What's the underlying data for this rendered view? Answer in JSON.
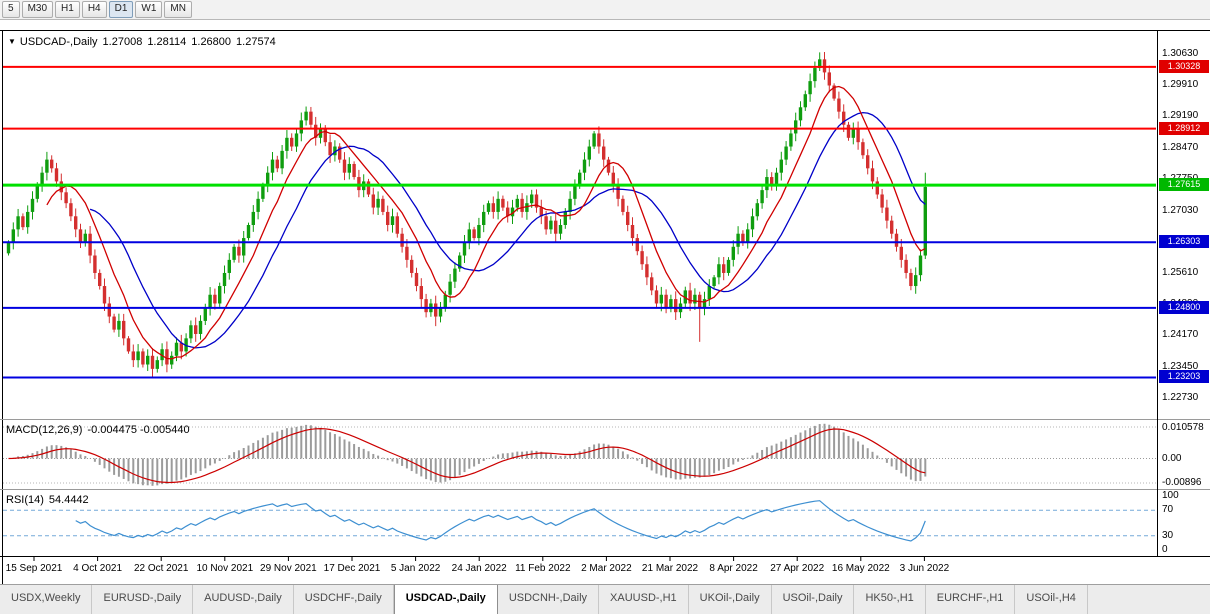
{
  "toolbar": {
    "timeframes": [
      "5",
      "M30",
      "H1",
      "H4",
      "D1",
      "W1",
      "MN"
    ],
    "active": "D1"
  },
  "chart_header": {
    "dropdown_icon": "▼",
    "symbol": "USDCAD-,Daily",
    "open": "1.27008",
    "high": "1.28114",
    "low": "1.26800",
    "close": "1.27574"
  },
  "price_axis": {
    "ticks": [
      "1.30630",
      "1.29910",
      "1.29190",
      "1.28470",
      "1.27750",
      "1.27030",
      "1.26310",
      "1.25610",
      "1.24890",
      "1.24170",
      "1.23450",
      "1.22730"
    ],
    "badges": [
      {
        "value": "1.30328",
        "color": "#e00000"
      },
      {
        "value": "1.28912",
        "color": "#e00000"
      },
      {
        "value": "1.27615",
        "color": "#00b800"
      },
      {
        "value": "1.26303",
        "color": "#0000d0"
      },
      {
        "value": "1.24800",
        "color": "#0000d0"
      },
      {
        "value": "1.23203",
        "color": "#0000d0"
      }
    ]
  },
  "levels": [
    {
      "price": 1.30328,
      "color": "#ff0000",
      "width": 2
    },
    {
      "price": 1.28912,
      "color": "#ff0000",
      "width": 2
    },
    {
      "price": 1.27615,
      "color": "#00e000",
      "width": 3
    },
    {
      "price": 1.26303,
      "color": "#0000e0",
      "width": 2
    },
    {
      "price": 1.248,
      "color": "#0000e0",
      "width": 2
    },
    {
      "price": 1.23203,
      "color": "#0000e0",
      "width": 2
    }
  ],
  "macd_panel": {
    "label": "MACD(12,26,9)",
    "values": "-0.004475 -0.005440",
    "axis_top": "0.010578",
    "axis_zero": "0.00",
    "axis_bottom": "-0.00896",
    "hist_color": "#9b9b9b",
    "signal_color": "#cc0000"
  },
  "rsi_panel": {
    "label": "RSI(14)",
    "value": "54.4442",
    "axis": [
      "100",
      "70",
      "30",
      "0"
    ],
    "levels": [
      70,
      30
    ],
    "line_color": "#3d8fd1",
    "level_color": "#74a9d8"
  },
  "bottom_tabs": {
    "items": [
      "USDX,Weekly",
      "EURUSD-,Daily",
      "AUDUSD-,Daily",
      "USDCHF-,Daily",
      "USDCAD-,Daily",
      "USDCNH-,Daily",
      "XAUUSD-,H1",
      "UKOil-,Daily",
      "USOil-,Daily",
      "HK50-,H1",
      "EURCHF-,H1",
      "USOil-,H4"
    ],
    "active_index": 4
  },
  "chart_data": {
    "type": "candlestick",
    "title": "USDCAD-,Daily",
    "ohlc_current": {
      "open": 1.27008,
      "high": 1.28114,
      "low": 1.268,
      "close": 1.27574
    },
    "ylim": [
      1.2225,
      1.3115
    ],
    "x_labels": [
      "15 Sep 2021",
      "4 Oct 2021",
      "22 Oct 2021",
      "10 Nov 2021",
      "29 Nov 2021",
      "17 Dec 2021",
      "5 Jan 2022",
      "24 Jan 2022",
      "11 Feb 2022",
      "2 Mar 2022",
      "21 Mar 2022",
      "8 Apr 2022",
      "27 Apr 2022",
      "16 May 2022",
      "3 Jun 2022"
    ],
    "colors": {
      "up": "#0f9d0f",
      "down": "#d42f2f",
      "ma_fast": "#d00000",
      "ma_slow": "#0000c8"
    },
    "ma_fast_period": 9,
    "ma_slow_period": 18,
    "macd": {
      "fast": 12,
      "slow": 26,
      "signal": 9
    },
    "rsi": {
      "period": 14
    },
    "closes": [
      1.263,
      1.266,
      1.269,
      1.2665,
      1.27,
      1.273,
      1.276,
      1.279,
      1.282,
      1.28,
      1.277,
      1.2745,
      1.272,
      1.269,
      1.266,
      1.263,
      1.265,
      1.26,
      1.256,
      1.253,
      1.249,
      1.246,
      1.243,
      1.245,
      1.241,
      1.238,
      1.236,
      1.238,
      1.235,
      1.237,
      1.234,
      1.236,
      1.2385,
      1.235,
      1.237,
      1.24,
      1.238,
      1.241,
      1.244,
      1.242,
      1.245,
      1.248,
      1.251,
      1.249,
      1.253,
      1.256,
      1.259,
      1.262,
      1.26,
      1.264,
      1.267,
      1.27,
      1.273,
      1.276,
      1.279,
      1.282,
      1.28,
      1.284,
      1.287,
      1.285,
      1.288,
      1.291,
      1.293,
      1.29,
      1.287,
      1.289,
      1.286,
      1.283,
      1.285,
      1.282,
      1.279,
      1.281,
      1.278,
      1.275,
      1.277,
      1.274,
      1.271,
      1.273,
      1.27,
      1.267,
      1.269,
      1.265,
      1.262,
      1.259,
      1.256,
      1.253,
      1.25,
      1.247,
      1.249,
      1.246,
      1.248,
      1.251,
      1.254,
      1.257,
      1.26,
      1.263,
      1.266,
      1.264,
      1.267,
      1.27,
      1.272,
      1.27,
      1.273,
      1.271,
      1.269,
      1.271,
      1.273,
      1.27,
      1.272,
      1.274,
      1.271,
      1.269,
      1.266,
      1.268,
      1.265,
      1.267,
      1.27,
      1.273,
      1.276,
      1.279,
      1.282,
      1.285,
      1.288,
      1.285,
      1.282,
      1.279,
      1.276,
      1.273,
      1.27,
      1.267,
      1.264,
      1.261,
      1.258,
      1.255,
      1.252,
      1.249,
      1.251,
      1.248,
      1.25,
      1.247,
      1.249,
      1.252,
      1.249,
      1.251,
      1.248,
      1.25,
      1.253,
      1.255,
      1.258,
      1.256,
      1.259,
      1.262,
      1.265,
      1.263,
      1.266,
      1.269,
      1.272,
      1.275,
      1.278,
      1.276,
      1.279,
      1.282,
      1.285,
      1.288,
      1.291,
      1.294,
      1.297,
      1.3,
      1.303,
      1.305,
      1.302,
      1.299,
      1.296,
      1.293,
      1.29,
      1.287,
      1.289,
      1.286,
      1.283,
      1.28,
      1.277,
      1.274,
      1.271,
      1.268,
      1.265,
      1.262,
      1.259,
      1.256,
      1.253,
      1.2555,
      1.26,
      1.27574
    ],
    "wick_overrides": {
      "30": {
        "low": 1.232
      },
      "89": {
        "low": 1.2438
      },
      "144": {
        "low": 1.2402
      },
      "169": {
        "high": 1.3066
      },
      "191": {
        "high": 1.279
      }
    }
  }
}
